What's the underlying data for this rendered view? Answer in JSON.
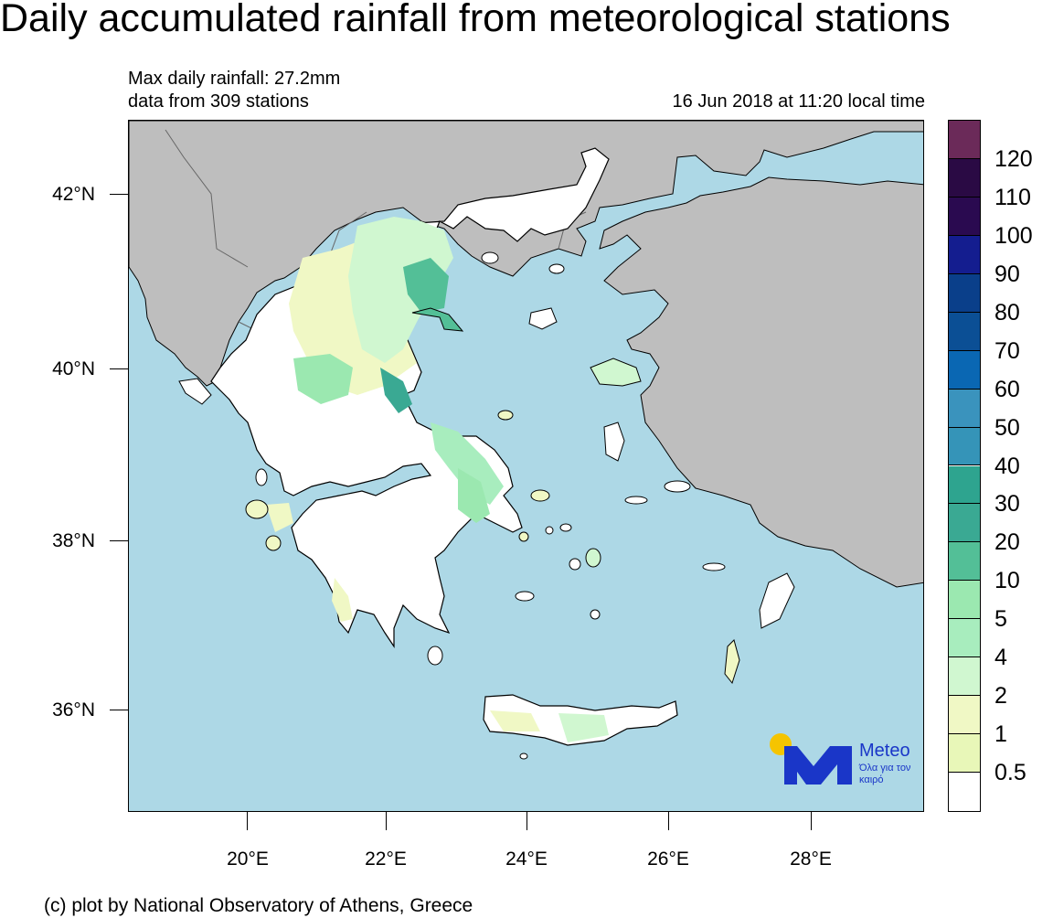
{
  "title": "Daily accumulated rainfall from meteorological stations",
  "subtitle": {
    "max_rainfall": "Max daily rainfall: 27.2mm",
    "stations": "data from 309 stations",
    "date": "16 Jun 2018 at 11:20 local time"
  },
  "credit": "(c) plot by National Observatory of Athens, Greece",
  "axes": {
    "lat_labels": [
      "42°N",
      "40°N",
      "38°N",
      "36°N"
    ],
    "lon_labels": [
      "20°E",
      "22°E",
      "24°E",
      "26°E",
      "28°E"
    ]
  },
  "colors": {
    "sea": "#add8e6",
    "land_outside": "#bebebe",
    "land_dry": "#ffffff",
    "border": "#000000"
  },
  "colorbar": {
    "labels": [
      "120",
      "110",
      "100",
      "90",
      "80",
      "70",
      "60",
      "50",
      "40",
      "30",
      "20",
      "10",
      "5",
      "4",
      "2",
      "1",
      "0.5"
    ],
    "colors": [
      "#6b2a59",
      "#2a0a44",
      "#2a0a50",
      "#141d8f",
      "#0a3f8a",
      "#0b4f95",
      "#0a67b3",
      "#3a93bd",
      "#3594b8",
      "#2ea48f",
      "#3aa993",
      "#53bf97",
      "#9be8b0",
      "#a8edbe",
      "#d0f7d0",
      "#f0f8c5",
      "#e8f7b8",
      "#ffffff"
    ]
  },
  "logo": {
    "name": "Meteo",
    "tagline": "Όλα για τον καιρό",
    "colors": [
      "#f5c400",
      "#1a36c8"
    ]
  }
}
